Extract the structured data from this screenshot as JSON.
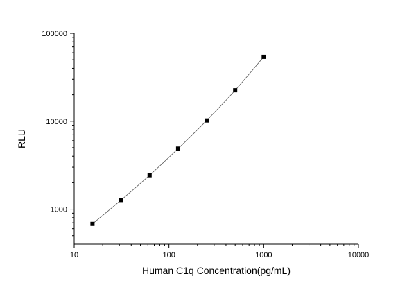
{
  "chart_data": {
    "type": "scatter",
    "title": "",
    "xlabel": "Human C1q Concentration(pg/mL)",
    "ylabel": "RLU",
    "xscale": "log",
    "yscale": "log",
    "xlim": [
      10,
      10000
    ],
    "ylim": [
      400,
      100000
    ],
    "x_ticks": [
      "10",
      "100",
      "1000",
      "10000"
    ],
    "y_ticks": [
      "1000",
      "10000",
      "100000"
    ],
    "grid": false,
    "legend": "none",
    "series": [
      {
        "marker": "square",
        "color": "#000000",
        "x": [
          15.6,
          31.25,
          62.5,
          125,
          250,
          500,
          1000
        ],
        "y": [
          680,
          1270,
          2430,
          4880,
          10200,
          22500,
          54000
        ]
      }
    ],
    "fit_curve": {
      "color": "#555555",
      "style": "smooth"
    }
  }
}
